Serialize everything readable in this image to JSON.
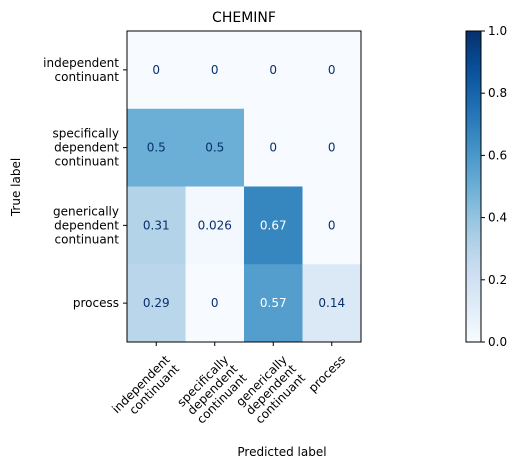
{
  "chart_data": {
    "type": "heatmap",
    "title": "CHEMINF",
    "xlabel": "Predicted label",
    "ylabel": "True label",
    "row_labels": [
      [
        "independent",
        "continuant"
      ],
      [
        "specifically",
        "dependent",
        "continuant"
      ],
      [
        "generically",
        "dependent",
        "continuant"
      ],
      [
        "process"
      ]
    ],
    "col_labels": [
      [
        "independent",
        "continuant"
      ],
      [
        "specifically",
        "dependent",
        "continuant"
      ],
      [
        "generically",
        "dependent",
        "continuant"
      ],
      [
        "process"
      ]
    ],
    "values": [
      [
        0,
        0,
        0,
        0
      ],
      [
        0.5,
        0.5,
        0,
        0
      ],
      [
        0.31,
        0.026,
        0.67,
        0
      ],
      [
        0.29,
        0,
        0.57,
        0.14
      ]
    ],
    "value_labels": [
      [
        "0",
        "0",
        "0",
        "0"
      ],
      [
        "0.5",
        "0.5",
        "0",
        "0"
      ],
      [
        "0.31",
        "0.026",
        "0.67",
        "0"
      ],
      [
        "0.29",
        "0",
        "0.57",
        "0.14"
      ]
    ],
    "colorbar": {
      "range": [
        0,
        1
      ],
      "ticks": [
        0.0,
        0.2,
        0.4,
        0.6,
        0.8,
        1.0
      ],
      "tick_labels": [
        "0.0",
        "0.2",
        "0.4",
        "0.6",
        "0.8",
        "1.0"
      ],
      "colormap": "Blues"
    }
  }
}
